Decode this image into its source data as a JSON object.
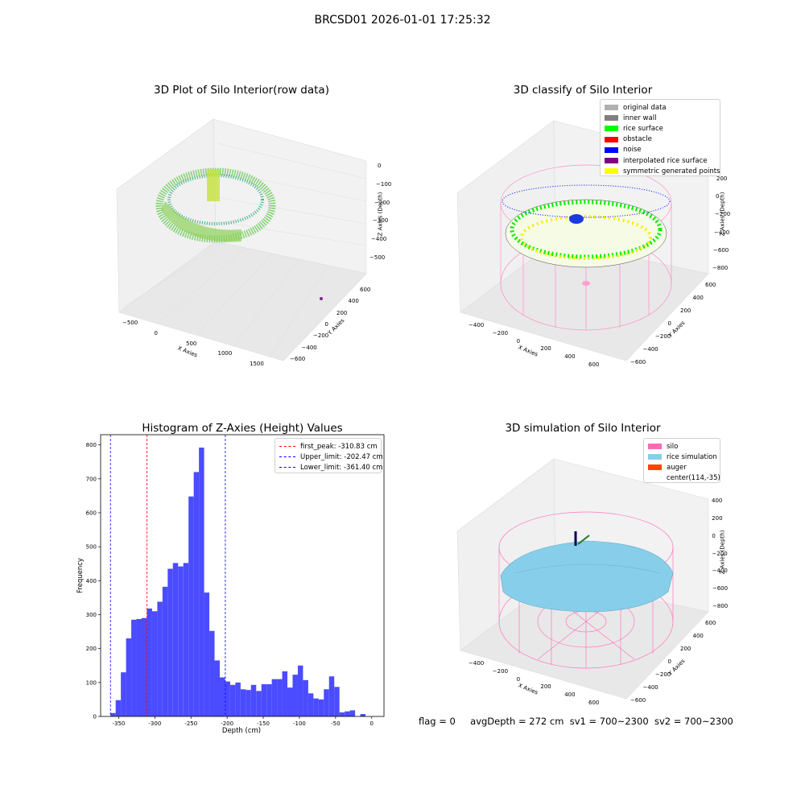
{
  "suptitle": "BRCSD01 2026-01-01 17:25:32",
  "colors": {
    "pane": "#f2f2f2",
    "pane_dark": "#e8e8e8",
    "grid": "#e0e0e0",
    "silo": "#ff69b4",
    "rice": "#87ceeb",
    "auger": "#ff4500",
    "hist_bar": "#4b4bff",
    "first_peak": "#ff0000",
    "limit": "#0000ff"
  },
  "panel_raw": {
    "title": "3D Plot of Silo Interior(row data)",
    "xlabel": "X Axies",
    "ylabel": "Y Axies",
    "zlabel": "Z Axies (Depth)",
    "xticks": [
      "−500",
      "0",
      "500",
      "1000",
      "1500"
    ],
    "yticks": [
      "−600",
      "−400",
      "−200",
      "0",
      "200",
      "400",
      "600"
    ],
    "zticks": [
      "0",
      "−100",
      "−200",
      "−300",
      "−400",
      "−500"
    ]
  },
  "panel_classify": {
    "title": "3D classify of Silo Interior",
    "xlabel": "X Axies",
    "ylabel": "Y Axies",
    "zlabel": "Z Axies (Depth)",
    "xticks": [
      "−400",
      "−200",
      "0",
      "200",
      "400",
      "600"
    ],
    "yticks": [
      "−600",
      "−400",
      "−200",
      "0",
      "200",
      "400",
      "600"
    ],
    "zticks": [
      "200",
      "0",
      "−200",
      "−400",
      "−600",
      "−800"
    ],
    "legend": [
      {
        "label": "original data",
        "color": "#b0b0b0"
      },
      {
        "label": "inner wall",
        "color": "#808080"
      },
      {
        "label": "rice surface",
        "color": "#00ff00"
      },
      {
        "label": "obstacle",
        "color": "#ff0000"
      },
      {
        "label": "noise",
        "color": "#0000ff"
      },
      {
        "label": "interpolated rice surface",
        "color": "#800080"
      },
      {
        "label": "symmetric generated points",
        "color": "#ffff00"
      }
    ]
  },
  "panel_sim": {
    "title": "3D simulation of Silo Interior",
    "xlabel": "X Axies",
    "ylabel": "Y Axies",
    "zlabel": "Z Axies (Depth)",
    "xticks": [
      "−400",
      "−200",
      "0",
      "200",
      "400",
      "600"
    ],
    "yticks": [
      "−600",
      "−400",
      "−200",
      "0",
      "200",
      "400",
      "600"
    ],
    "zticks": [
      "400",
      "200",
      "0",
      "−200",
      "−400",
      "−600",
      "−800"
    ],
    "legend": [
      {
        "label": "silo",
        "color": "#ff69b4"
      },
      {
        "label": "rice simulation",
        "color": "#87ceeb"
      },
      {
        "label": "auger",
        "color": "#ff4500"
      },
      {
        "label": "center(114,-35)",
        "color": ""
      }
    ]
  },
  "status": {
    "flag": "flag = 0",
    "avg_depth": "avgDepth = 272 cm",
    "sv1": "sv1 = 700~2300",
    "sv2": "sv2 = 700~2300"
  },
  "chart_data": [
    {
      "type": "histogram",
      "title": "Histogram of Z-Axies (Height) Values",
      "xlabel": "Depth (cm)",
      "ylabel": "Frequency",
      "xlim": [
        -375,
        17
      ],
      "ylim": [
        0,
        830
      ],
      "xticks": [
        -350,
        -300,
        -250,
        -200,
        -150,
        -100,
        -50,
        0
      ],
      "yticks": [
        0,
        100,
        200,
        300,
        400,
        500,
        600,
        700,
        800
      ],
      "bin_start": -361.4,
      "bin_width": 7.2,
      "counts": [
        10,
        48,
        130,
        230,
        285,
        287,
        290,
        318,
        310,
        338,
        382,
        435,
        452,
        442,
        452,
        648,
        720,
        792,
        365,
        252,
        165,
        115,
        103,
        93,
        100,
        80,
        78,
        93,
        75,
        95,
        95,
        110,
        110,
        133,
        85,
        123,
        150,
        107,
        68,
        53,
        50,
        80,
        118,
        87,
        12,
        15,
        18,
        0,
        7
      ],
      "vlines": [
        {
          "label": "first_peak: -310.83 cm",
          "x": -310.83,
          "color": "#ff0000"
        },
        {
          "label": "Upper_limit: -202.47 cm",
          "x": -202.47,
          "color": "#0000ff"
        },
        {
          "label": "Lower_limit: -361.40 cm",
          "x": -361.4,
          "color": "#0000ff"
        }
      ],
      "legend_position": "top-right"
    }
  ]
}
